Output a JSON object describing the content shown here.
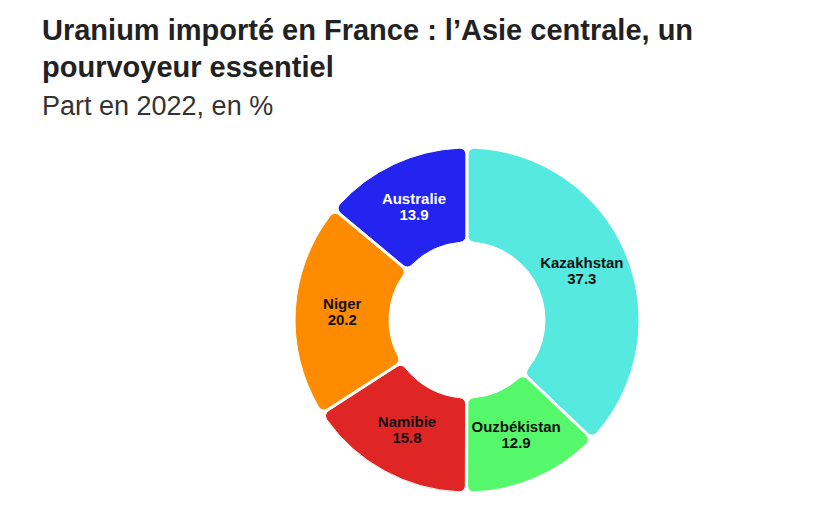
{
  "chart_data": {
    "type": "pie",
    "title": "Uranium importé en France : l’Asie centrale, un pourvoyeur essentiel",
    "subtitle": "Part en 2022, en %",
    "categories": [
      "Kazakhstan",
      "Ouzbékistan",
      "Namibie",
      "Niger",
      "Australie"
    ],
    "values": [
      37.3,
      12.9,
      15.8,
      20.2,
      13.9
    ],
    "colors": [
      "#56e9e0",
      "#55f86b",
      "#e02525",
      "#ff8c00",
      "#2424f0"
    ],
    "data_labels": true
  }
}
